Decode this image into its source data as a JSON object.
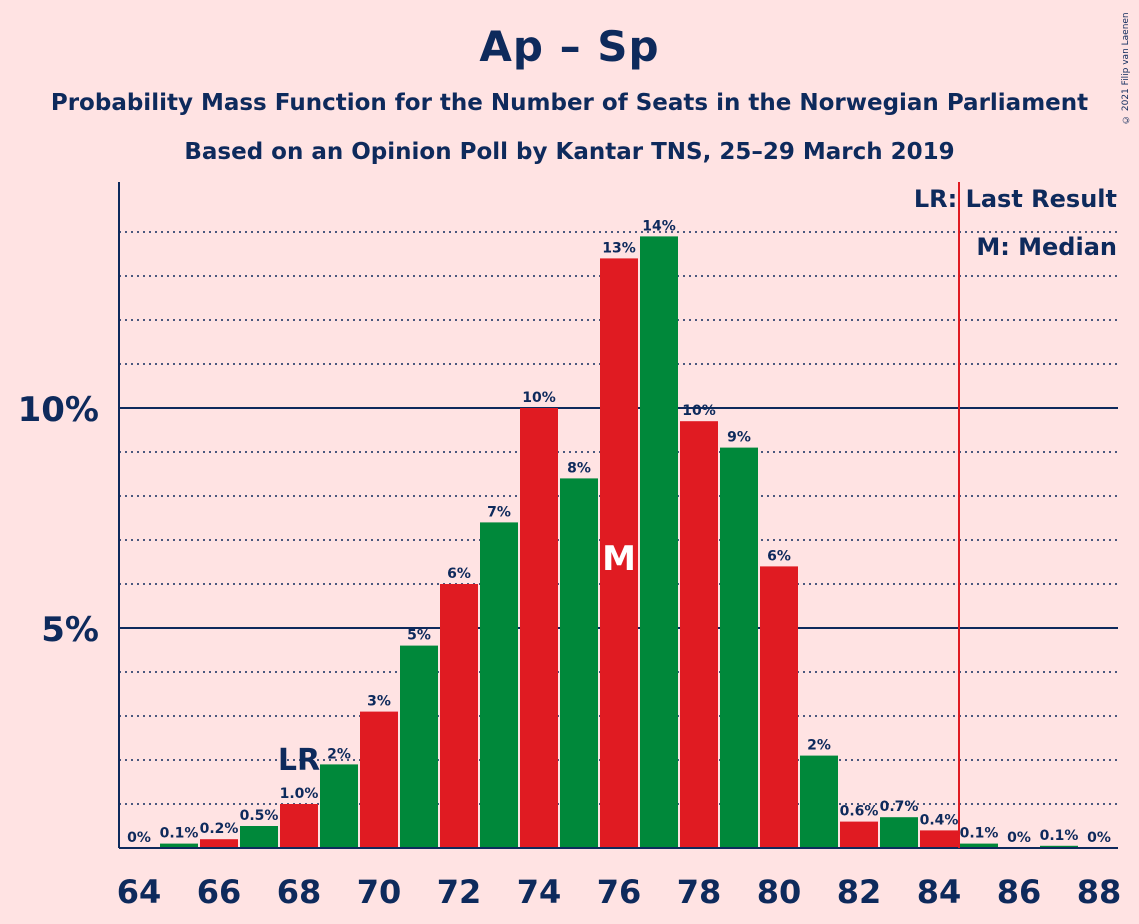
{
  "title": "Ap – Sp",
  "subtitle": "Probability Mass Function for the Number of Seats in the Norwegian Parliament",
  "subtitle2": "Based on an Opinion Poll by Kantar TNS, 25–29 March 2019",
  "copyright": "© 2021 Filip van Laenen",
  "legend": {
    "last_result": "LR: Last Result",
    "median": "M: Median"
  },
  "colors": {
    "background": "#FFE3E3",
    "red": "#E01B22",
    "green": "#00883A",
    "text": "#0E2A5C",
    "lr_line": "#E01B22"
  },
  "chart_data": {
    "type": "bar",
    "x": [
      64,
      65,
      66,
      67,
      68,
      69,
      70,
      71,
      72,
      73,
      74,
      75,
      76,
      77,
      78,
      79,
      80,
      81,
      82,
      83,
      84,
      85,
      86,
      87,
      88
    ],
    "values": [
      0,
      0.1,
      0.2,
      0.5,
      1.0,
      1.9,
      3.1,
      4.6,
      6.0,
      7.4,
      10.0,
      8.4,
      13.4,
      13.9,
      9.7,
      9.1,
      6.4,
      2.1,
      0.6,
      0.7,
      0.4,
      0.1,
      0,
      0.05,
      0
    ],
    "labels": [
      "0%",
      "0.1%",
      "0.2%",
      "0.5%",
      "1.0%",
      "2%",
      "3%",
      "5%",
      "6%",
      "7%",
      "10%",
      "8%",
      "13%",
      "14%",
      "10%",
      "9%",
      "6%",
      "2%",
      "0.6%",
      "0.7%",
      "0.4%",
      "0.1%",
      "0%",
      "0.1%",
      "0%"
    ],
    "bar_colors": [
      "green",
      "green",
      "red",
      "green",
      "red",
      "green",
      "red",
      "green",
      "red",
      "green",
      "red",
      "green",
      "red",
      "green",
      "red",
      "green",
      "red",
      "green",
      "red",
      "green",
      "red",
      "green",
      "red",
      "green",
      "red"
    ],
    "xticks": [
      "64",
      "66",
      "68",
      "70",
      "72",
      "74",
      "76",
      "78",
      "80",
      "82",
      "84",
      "86",
      "88"
    ],
    "yticks": [
      "5%",
      "10%"
    ],
    "ytick_values": [
      5,
      10
    ],
    "ylim": [
      0,
      15
    ],
    "grid": true,
    "last_result": 68,
    "last_result_label": "LR",
    "median": 76,
    "median_label": "M",
    "lr_line_x": 84.5
  }
}
